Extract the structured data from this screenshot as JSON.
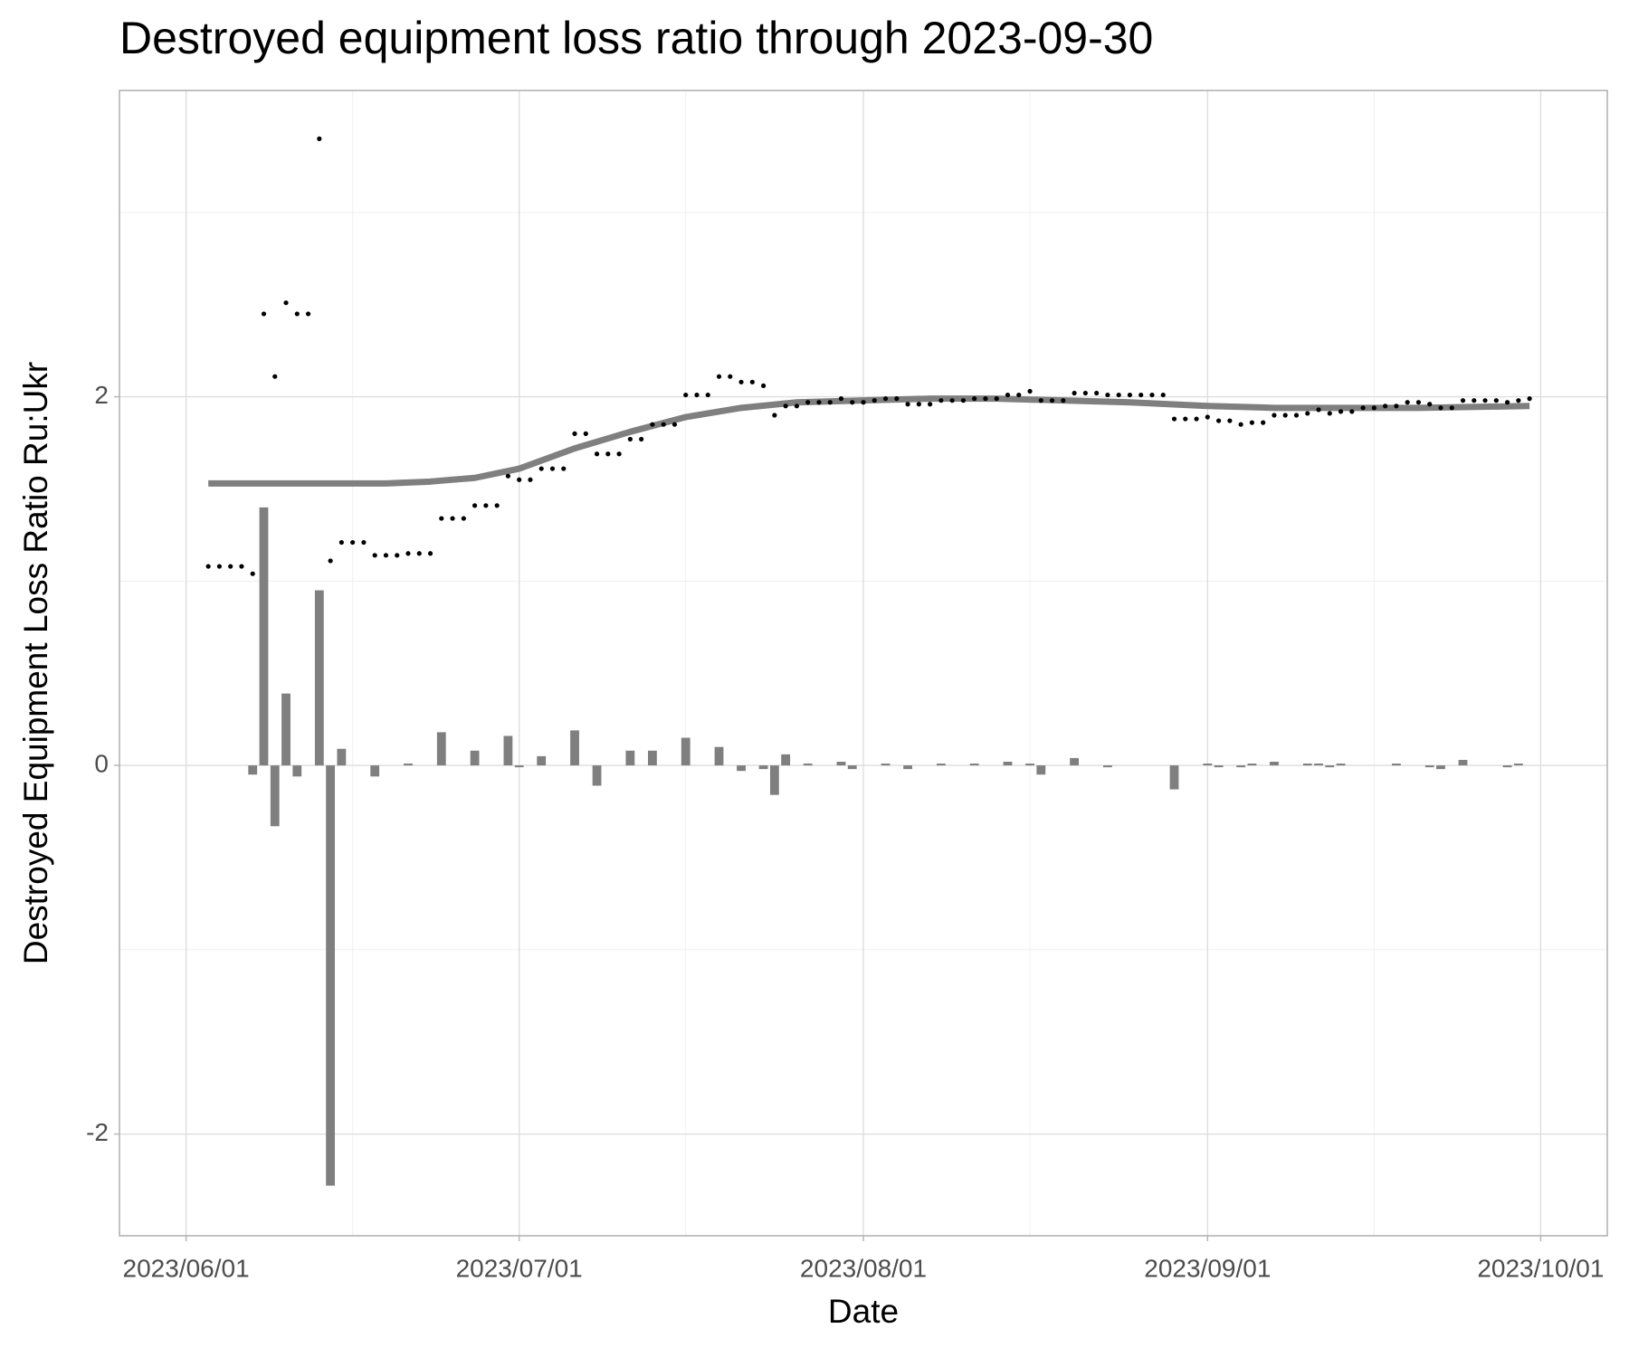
{
  "chart_data": {
    "type": "combo",
    "title": "Destroyed equipment loss ratio through 2023-09-30",
    "x_label": "Date",
    "y_label": "Destroyed Equipment Loss Ratio Ru:Ukr",
    "xlim": [
      "2023-05-26",
      "2023-10-07"
    ],
    "xticks": [
      {
        "value": "2023-06-01",
        "label": "2023/06/01"
      },
      {
        "value": "2023-07-01",
        "label": "2023/07/01"
      },
      {
        "value": "2023-08-01",
        "label": "2023/08/01"
      },
      {
        "value": "2023-09-01",
        "label": "2023/09/01"
      },
      {
        "value": "2023-10-01",
        "label": "2023/10/01"
      }
    ],
    "xminor": [
      "2023-06-16",
      "2023-07-16",
      "2023-08-16",
      "2023-09-16"
    ],
    "ylim": [
      -2.552,
      3.662
    ],
    "yticks": [
      -2,
      0,
      2
    ],
    "yminor": [
      -1,
      1,
      3
    ],
    "grid": true,
    "series": [
      {
        "type": "bar",
        "color": "#7f7f7f",
        "x": [
          "2023-06-07",
          "2023-06-08",
          "2023-06-09",
          "2023-06-10",
          "2023-06-11",
          "2023-06-13",
          "2023-06-14",
          "2023-06-15",
          "2023-06-18",
          "2023-06-21",
          "2023-06-24",
          "2023-06-27",
          "2023-06-30",
          "2023-07-01",
          "2023-07-03",
          "2023-07-06",
          "2023-07-08",
          "2023-07-11",
          "2023-07-13",
          "2023-07-16",
          "2023-07-19",
          "2023-07-21",
          "2023-07-23",
          "2023-07-24",
          "2023-07-25",
          "2023-07-27",
          "2023-07-30",
          "2023-07-31",
          "2023-08-03",
          "2023-08-05",
          "2023-08-08",
          "2023-08-11",
          "2023-08-14",
          "2023-08-16",
          "2023-08-17",
          "2023-08-20",
          "2023-08-23",
          "2023-08-29",
          "2023-09-01",
          "2023-09-02",
          "2023-09-04",
          "2023-09-05",
          "2023-09-07",
          "2023-09-10",
          "2023-09-11",
          "2023-09-12",
          "2023-09-13",
          "2023-09-18",
          "2023-09-21",
          "2023-09-22",
          "2023-09-24",
          "2023-09-28",
          "2023-09-29"
        ],
        "values": [
          -0.05,
          1.4,
          -0.33,
          0.39,
          -0.06,
          0.95,
          -2.28,
          0.09,
          -0.06,
          0.01,
          0.18,
          0.08,
          0.16,
          -0.01,
          0.05,
          0.19,
          -0.11,
          0.08,
          0.08,
          0.15,
          0.1,
          -0.03,
          -0.02,
          -0.16,
          0.06,
          0.01,
          0.02,
          -0.02,
          0.01,
          -0.02,
          0.01,
          0.01,
          0.02,
          0.01,
          -0.05,
          0.04,
          -0.01,
          -0.13,
          0.01,
          -0.01,
          -0.01,
          0.01,
          0.02,
          0.01,
          0.01,
          -0.01,
          0.01,
          0.01,
          -0.01,
          -0.02,
          0.03,
          -0.01,
          0.01
        ]
      },
      {
        "type": "line",
        "color": "#7f7f7f",
        "x": [
          "2023-06-03",
          "2023-06-11",
          "2023-06-19",
          "2023-06-23",
          "2023-06-27",
          "2023-07-01",
          "2023-07-06",
          "2023-07-11",
          "2023-07-16",
          "2023-07-21",
          "2023-07-26",
          "2023-08-01",
          "2023-08-07",
          "2023-08-13",
          "2023-08-19",
          "2023-08-25",
          "2023-09-01",
          "2023-09-07",
          "2023-09-13",
          "2023-09-20",
          "2023-09-30"
        ],
        "values": [
          1.53,
          1.53,
          1.53,
          1.54,
          1.56,
          1.61,
          1.72,
          1.81,
          1.89,
          1.94,
          1.97,
          1.98,
          1.99,
          1.99,
          1.98,
          1.97,
          1.95,
          1.94,
          1.94,
          1.94,
          1.95
        ]
      },
      {
        "type": "scatter",
        "color": "#000000",
        "x": [
          "2023-06-03",
          "2023-06-04",
          "2023-06-05",
          "2023-06-06",
          "2023-06-07",
          "2023-06-08",
          "2023-06-09",
          "2023-06-10",
          "2023-06-11",
          "2023-06-12",
          "2023-06-13",
          "2023-06-14",
          "2023-06-15",
          "2023-06-16",
          "2023-06-17",
          "2023-06-18",
          "2023-06-19",
          "2023-06-20",
          "2023-06-21",
          "2023-06-22",
          "2023-06-23",
          "2023-06-24",
          "2023-06-25",
          "2023-06-26",
          "2023-06-27",
          "2023-06-28",
          "2023-06-29",
          "2023-06-30",
          "2023-07-01",
          "2023-07-02",
          "2023-07-03",
          "2023-07-04",
          "2023-07-05",
          "2023-07-06",
          "2023-07-07",
          "2023-07-08",
          "2023-07-09",
          "2023-07-10",
          "2023-07-11",
          "2023-07-12",
          "2023-07-13",
          "2023-07-14",
          "2023-07-15",
          "2023-07-16",
          "2023-07-17",
          "2023-07-18",
          "2023-07-19",
          "2023-07-20",
          "2023-07-21",
          "2023-07-22",
          "2023-07-23",
          "2023-07-24",
          "2023-07-25",
          "2023-07-26",
          "2023-07-27",
          "2023-07-28",
          "2023-07-29",
          "2023-07-30",
          "2023-07-31",
          "2023-08-01",
          "2023-08-02",
          "2023-08-03",
          "2023-08-04",
          "2023-08-05",
          "2023-08-06",
          "2023-08-07",
          "2023-08-08",
          "2023-08-09",
          "2023-08-10",
          "2023-08-11",
          "2023-08-12",
          "2023-08-13",
          "2023-08-14",
          "2023-08-15",
          "2023-08-16",
          "2023-08-17",
          "2023-08-18",
          "2023-08-19",
          "2023-08-20",
          "2023-08-21",
          "2023-08-22",
          "2023-08-23",
          "2023-08-24",
          "2023-08-25",
          "2023-08-26",
          "2023-08-27",
          "2023-08-28",
          "2023-08-29",
          "2023-08-30",
          "2023-08-31",
          "2023-09-01",
          "2023-09-02",
          "2023-09-03",
          "2023-09-04",
          "2023-09-05",
          "2023-09-06",
          "2023-09-07",
          "2023-09-08",
          "2023-09-09",
          "2023-09-10",
          "2023-09-11",
          "2023-09-12",
          "2023-09-13",
          "2023-09-14",
          "2023-09-15",
          "2023-09-16",
          "2023-09-17",
          "2023-09-18",
          "2023-09-19",
          "2023-09-20",
          "2023-09-21",
          "2023-09-22",
          "2023-09-23",
          "2023-09-24",
          "2023-09-25",
          "2023-09-26",
          "2023-09-27",
          "2023-09-28",
          "2023-09-29",
          "2023-09-30"
        ],
        "values": [
          1.08,
          1.08,
          1.08,
          1.08,
          1.04,
          2.45,
          2.11,
          2.51,
          2.45,
          2.45,
          3.4,
          1.11,
          1.21,
          1.21,
          1.21,
          1.14,
          1.14,
          1.14,
          1.15,
          1.15,
          1.15,
          1.34,
          1.34,
          1.34,
          1.41,
          1.41,
          1.41,
          1.57,
          1.55,
          1.55,
          1.61,
          1.61,
          1.61,
          1.8,
          1.8,
          1.69,
          1.69,
          1.69,
          1.77,
          1.77,
          1.85,
          1.85,
          1.85,
          2.01,
          2.01,
          2.01,
          2.11,
          2.11,
          2.08,
          2.08,
          2.06,
          1.9,
          1.95,
          1.95,
          1.97,
          1.97,
          1.97,
          1.99,
          1.97,
          1.97,
          1.98,
          1.99,
          1.99,
          1.96,
          1.96,
          1.96,
          1.98,
          1.98,
          1.98,
          1.99,
          1.99,
          1.99,
          2.01,
          2.01,
          2.03,
          1.98,
          1.98,
          1.98,
          2.02,
          2.02,
          2.02,
          2.01,
          2.01,
          2.01,
          2.01,
          2.01,
          2.01,
          1.88,
          1.88,
          1.88,
          1.89,
          1.87,
          1.87,
          1.85,
          1.86,
          1.86,
          1.9,
          1.9,
          1.9,
          1.91,
          1.93,
          1.91,
          1.92,
          1.92,
          1.94,
          1.94,
          1.95,
          1.95,
          1.97,
          1.97,
          1.96,
          1.94,
          1.94,
          1.98,
          1.98,
          1.98,
          1.98,
          1.97,
          1.98,
          1.99
        ]
      }
    ]
  }
}
